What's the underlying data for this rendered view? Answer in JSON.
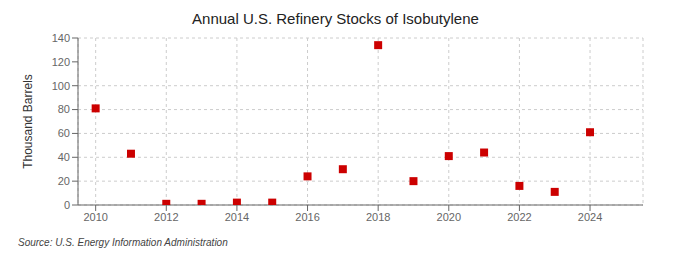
{
  "chart_data": {
    "type": "scatter",
    "title": "Annual U.S. Refinery Stocks of Isobutylene",
    "y_label": "Thousand Barrels",
    "source": "Source: U.S. Energy Information Administration",
    "x": [
      2010,
      2011,
      2012,
      2013,
      2014,
      2015,
      2016,
      2017,
      2018,
      2019,
      2020,
      2021,
      2022,
      2023,
      2024
    ],
    "values": [
      81,
      43,
      1,
      1,
      2,
      2,
      24,
      30,
      134,
      20,
      41,
      44,
      16,
      11,
      61
    ],
    "color": "#cc0000",
    "marker": "square",
    "xlim": [
      2009.5,
      2025.5
    ],
    "ylim": [
      0,
      140
    ],
    "xticks": [
      2010,
      2012,
      2014,
      2016,
      2018,
      2020,
      2022,
      2024
    ],
    "yticks": [
      0,
      20,
      40,
      60,
      80,
      100,
      120,
      140
    ],
    "grid": true
  }
}
